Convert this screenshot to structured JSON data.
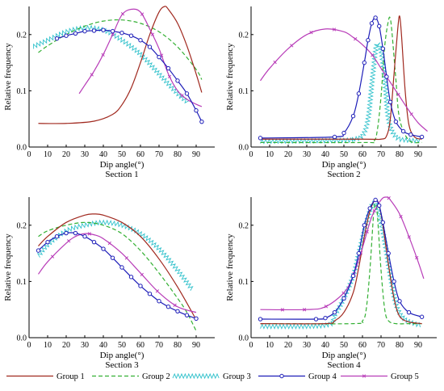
{
  "chart_data": [
    {
      "type": "line",
      "caption": "Section 1",
      "xlabel": "Dip angle(°)",
      "ylabel": "Relative frequency",
      "xlim": [
        0,
        100
      ],
      "ylim": [
        0,
        0.25
      ],
      "xticks": [
        0,
        10,
        20,
        30,
        40,
        50,
        60,
        70,
        80,
        90
      ],
      "yticks": [
        0.0,
        0.1,
        0.2
      ],
      "series": [
        {
          "name": "Group 1",
          "x": [
            5,
            20,
            35,
            45,
            50,
            55,
            60,
            65,
            70,
            73,
            75,
            80,
            85,
            90,
            93
          ],
          "y": [
            0.042,
            0.042,
            0.046,
            0.058,
            0.075,
            0.105,
            0.15,
            0.2,
            0.24,
            0.25,
            0.245,
            0.22,
            0.18,
            0.13,
            0.097
          ]
        },
        {
          "name": "Group 2",
          "x": [
            5,
            10,
            20,
            30,
            40,
            50,
            60,
            70,
            80,
            90,
            93
          ],
          "y": [
            0.168,
            0.18,
            0.2,
            0.215,
            0.224,
            0.226,
            0.22,
            0.205,
            0.178,
            0.138,
            0.12
          ]
        },
        {
          "name": "Group 3",
          "x": [
            2,
            10,
            20,
            30,
            40,
            50,
            60,
            70,
            80,
            86
          ],
          "y": [
            0.178,
            0.19,
            0.205,
            0.212,
            0.208,
            0.19,
            0.165,
            0.13,
            0.095,
            0.078
          ]
        },
        {
          "name": "Group 4",
          "x": [
            15,
            20,
            25,
            30,
            35,
            40,
            45,
            50,
            55,
            60,
            65,
            70,
            75,
            80,
            85,
            90,
            93
          ],
          "y": [
            0.193,
            0.198,
            0.202,
            0.206,
            0.207,
            0.208,
            0.206,
            0.203,
            0.198,
            0.19,
            0.178,
            0.16,
            0.14,
            0.118,
            0.095,
            0.065,
            0.045
          ]
        },
        {
          "name": "Group 5",
          "x": [
            27,
            30,
            35,
            40,
            45,
            50,
            55,
            60,
            65,
            70,
            75,
            80,
            85,
            90,
            93
          ],
          "y": [
            0.095,
            0.11,
            0.135,
            0.165,
            0.2,
            0.235,
            0.245,
            0.24,
            0.21,
            0.175,
            0.13,
            0.1,
            0.085,
            0.076,
            0.072
          ]
        }
      ]
    },
    {
      "type": "line",
      "caption": "Section 2",
      "xlabel": "Dip angle(°)",
      "ylabel": "Relative frequency",
      "xlim": [
        0,
        100
      ],
      "ylim": [
        0,
        0.25
      ],
      "xticks": [
        0,
        10,
        20,
        30,
        40,
        50,
        60,
        70,
        80,
        90
      ],
      "yticks": [
        0.0,
        0.1,
        0.2
      ],
      "series": [
        {
          "name": "Group 1",
          "x": [
            5,
            60,
            70,
            73,
            75,
            77,
            79,
            80,
            81,
            83,
            85,
            88,
            92
          ],
          "y": [
            0.014,
            0.014,
            0.014,
            0.02,
            0.05,
            0.13,
            0.21,
            0.233,
            0.2,
            0.1,
            0.04,
            0.018,
            0.014
          ]
        },
        {
          "name": "Group 2",
          "x": [
            5,
            60,
            66,
            68,
            70,
            72,
            74,
            75,
            76,
            78,
            80,
            85,
            92
          ],
          "y": [
            0.008,
            0.008,
            0.01,
            0.03,
            0.09,
            0.18,
            0.225,
            0.228,
            0.2,
            0.12,
            0.05,
            0.012,
            0.008
          ]
        },
        {
          "name": "Group 3",
          "x": [
            5,
            50,
            55,
            60,
            63,
            65,
            67,
            68,
            70,
            72,
            74,
            78,
            85,
            92
          ],
          "y": [
            0.01,
            0.012,
            0.014,
            0.02,
            0.05,
            0.11,
            0.17,
            0.185,
            0.17,
            0.12,
            0.05,
            0.018,
            0.012,
            0.012
          ]
        },
        {
          "name": "Group 4",
          "x": [
            5,
            45,
            50,
            55,
            58,
            61,
            63,
            65,
            67,
            69,
            71,
            73,
            75,
            78,
            82,
            86,
            92
          ],
          "y": [
            0.016,
            0.018,
            0.025,
            0.055,
            0.095,
            0.15,
            0.19,
            0.22,
            0.23,
            0.215,
            0.175,
            0.125,
            0.08,
            0.045,
            0.028,
            0.022,
            0.018
          ]
        },
        {
          "name": "Group 5",
          "x": [
            5,
            10,
            20,
            30,
            40,
            50,
            55,
            60,
            65,
            70,
            75,
            80,
            85,
            90,
            95
          ],
          "y": [
            0.118,
            0.14,
            0.175,
            0.2,
            0.21,
            0.205,
            0.195,
            0.182,
            0.165,
            0.14,
            0.115,
            0.09,
            0.065,
            0.043,
            0.028
          ]
        }
      ]
    },
    {
      "type": "line",
      "caption": "Section 3",
      "xlabel": "Dip angle(°)",
      "ylabel": "Relative frequency",
      "xlim": [
        0,
        100
      ],
      "ylim": [
        0,
        0.25
      ],
      "xticks": [
        0,
        10,
        20,
        30,
        40,
        50,
        60,
        70,
        80,
        90
      ],
      "yticks": [
        0.0,
        0.1,
        0.2
      ],
      "series": [
        {
          "name": "Group 1",
          "x": [
            5,
            10,
            20,
            30,
            35,
            40,
            50,
            60,
            70,
            80,
            90
          ],
          "y": [
            0.163,
            0.18,
            0.205,
            0.218,
            0.22,
            0.218,
            0.205,
            0.18,
            0.14,
            0.09,
            0.032
          ]
        },
        {
          "name": "Group 2",
          "x": [
            5,
            10,
            20,
            30,
            40,
            50,
            60,
            70,
            80,
            85,
            90
          ],
          "y": [
            0.18,
            0.19,
            0.2,
            0.205,
            0.2,
            0.185,
            0.155,
            0.115,
            0.07,
            0.045,
            0.012
          ]
        },
        {
          "name": "Group 3",
          "x": [
            5,
            10,
            20,
            30,
            40,
            50,
            60,
            70,
            80,
            88
          ],
          "y": [
            0.145,
            0.165,
            0.19,
            0.2,
            0.205,
            0.2,
            0.185,
            0.158,
            0.12,
            0.085
          ]
        },
        {
          "name": "Group 4",
          "x": [
            5,
            10,
            15,
            20,
            25,
            30,
            35,
            40,
            45,
            50,
            55,
            60,
            65,
            70,
            75,
            80,
            85,
            90
          ],
          "y": [
            0.155,
            0.17,
            0.18,
            0.186,
            0.186,
            0.18,
            0.17,
            0.158,
            0.142,
            0.125,
            0.108,
            0.092,
            0.078,
            0.065,
            0.055,
            0.047,
            0.04,
            0.034
          ]
        },
        {
          "name": "Group 5",
          "x": [
            5,
            10,
            20,
            25,
            30,
            35,
            40,
            50,
            60,
            70,
            80,
            90
          ],
          "y": [
            0.113,
            0.135,
            0.168,
            0.18,
            0.185,
            0.183,
            0.176,
            0.15,
            0.115,
            0.08,
            0.055,
            0.045
          ]
        }
      ]
    },
    {
      "type": "line",
      "caption": "Section 4",
      "xlabel": "Dip angle(°)",
      "ylabel": "Relative frequency",
      "xlim": [
        0,
        100
      ],
      "ylim": [
        0,
        0.25
      ],
      "xticks": [
        0,
        10,
        20,
        30,
        40,
        50,
        60,
        70,
        80,
        90
      ],
      "yticks": [
        0.0,
        0.1,
        0.2
      ],
      "series": [
        {
          "name": "Group 1",
          "x": [
            5,
            40,
            45,
            50,
            55,
            58,
            61,
            64,
            67,
            69,
            71,
            74,
            77,
            80,
            85,
            92
          ],
          "y": [
            0.025,
            0.025,
            0.03,
            0.045,
            0.08,
            0.125,
            0.18,
            0.225,
            0.245,
            0.235,
            0.2,
            0.13,
            0.07,
            0.038,
            0.028,
            0.025
          ]
        },
        {
          "name": "Group 2",
          "x": [
            5,
            55,
            60,
            62,
            64,
            66,
            67,
            68,
            70,
            72,
            74,
            78,
            85,
            92
          ],
          "y": [
            0.025,
            0.025,
            0.03,
            0.05,
            0.12,
            0.22,
            0.238,
            0.22,
            0.12,
            0.05,
            0.03,
            0.025,
            0.025,
            0.025
          ]
        },
        {
          "name": "Group 3",
          "x": [
            5,
            40,
            45,
            50,
            55,
            58,
            61,
            63,
            65,
            67,
            69,
            72,
            75,
            78,
            82,
            88,
            92
          ],
          "y": [
            0.02,
            0.022,
            0.04,
            0.07,
            0.11,
            0.15,
            0.19,
            0.215,
            0.235,
            0.24,
            0.22,
            0.17,
            0.11,
            0.06,
            0.035,
            0.025,
            0.022
          ]
        },
        {
          "name": "Group 4",
          "x": [
            5,
            35,
            40,
            45,
            50,
            55,
            58,
            61,
            64,
            67,
            69,
            71,
            74,
            77,
            80,
            85,
            92
          ],
          "y": [
            0.033,
            0.033,
            0.035,
            0.045,
            0.07,
            0.11,
            0.15,
            0.2,
            0.23,
            0.245,
            0.235,
            0.205,
            0.15,
            0.1,
            0.065,
            0.045,
            0.037
          ]
        },
        {
          "name": "Group 5",
          "x": [
            5,
            30,
            40,
            50,
            55,
            60,
            65,
            70,
            73,
            75,
            80,
            85,
            90,
            93
          ],
          "y": [
            0.05,
            0.05,
            0.055,
            0.08,
            0.11,
            0.16,
            0.215,
            0.245,
            0.25,
            0.245,
            0.22,
            0.18,
            0.135,
            0.105
          ]
        }
      ]
    }
  ],
  "legend": [
    {
      "name": "Group 1",
      "color": "#a0281e",
      "style": "solid"
    },
    {
      "name": "Group 2",
      "color": "#33b033",
      "style": "dashed"
    },
    {
      "name": "Group 3",
      "color": "#33c2cc",
      "style": "wave"
    },
    {
      "name": "Group 4",
      "color": "#1d1db8",
      "style": "circle-markers"
    },
    {
      "name": "Group 5",
      "color": "#b83cb8",
      "style": "x-markers"
    }
  ]
}
